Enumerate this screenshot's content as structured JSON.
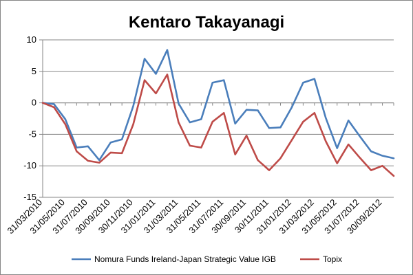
{
  "chart_data": {
    "type": "line",
    "title": "Kentaro Takayanagi",
    "xlabel": "",
    "ylabel": "",
    "ylim": [
      -15,
      10
    ],
    "yticks": [
      10,
      5,
      0,
      -5,
      -10,
      -15
    ],
    "grid": "horizontal",
    "legend_position": "bottom",
    "x": [
      "31/03/2010",
      "30/04/2010",
      "31/05/2010",
      "30/06/2010",
      "31/07/2010",
      "31/08/2010",
      "30/09/2010",
      "31/10/2010",
      "30/11/2010",
      "31/12/2010",
      "31/01/2011",
      "28/02/2011",
      "31/03/2011",
      "30/04/2011",
      "31/05/2011",
      "30/06/2011",
      "31/07/2011",
      "31/08/2011",
      "30/09/2011",
      "31/10/2011",
      "30/11/2011",
      "31/12/2011",
      "31/01/2012",
      "29/02/2012",
      "31/03/2012",
      "30/04/2012",
      "31/05/2012",
      "30/06/2012",
      "31/07/2012",
      "31/08/2012",
      "30/09/2012",
      "31/10/2012"
    ],
    "xtick_labels": [
      "31/03/2010",
      "31/05/2010",
      "31/07/2010",
      "30/09/2010",
      "30/11/2010",
      "31/01/2011",
      "31/03/2011",
      "31/05/2011",
      "31/07/2011",
      "30/09/2011",
      "30/11/2011",
      "31/01/2012",
      "31/03/2012",
      "31/05/2012",
      "31/07/2012",
      "30/09/2012"
    ],
    "series": [
      {
        "name": "Nomura Funds Ireland-Japan Strategic Value IGB",
        "color": "#4a7ebb",
        "values": [
          0,
          -0.2,
          -2.6,
          -7.1,
          -6.9,
          -9.1,
          -6.3,
          -5.8,
          -0.5,
          7.0,
          4.6,
          8.4,
          -0.1,
          -3.1,
          -2.6,
          3.2,
          3.6,
          -3.3,
          -1.1,
          -1.2,
          -4.0,
          -3.9,
          -0.7,
          3.2,
          3.8,
          -2.4,
          -7.2,
          -2.8,
          -5.3,
          -7.7,
          -8.4,
          -8.8
        ]
      },
      {
        "name": "Topix",
        "color": "#be4b48",
        "values": [
          0,
          -0.7,
          -3.4,
          -7.7,
          -9.2,
          -9.5,
          -7.9,
          -8.0,
          -3.4,
          3.6,
          1.5,
          4.5,
          -3.1,
          -6.8,
          -7.1,
          -3.0,
          -1.6,
          -8.2,
          -5.2,
          -9.1,
          -10.7,
          -8.8,
          -5.9,
          -3.0,
          -1.6,
          -6.1,
          -9.6,
          -6.6,
          -8.7,
          -10.7,
          -10.0,
          -11.6
        ]
      }
    ]
  }
}
